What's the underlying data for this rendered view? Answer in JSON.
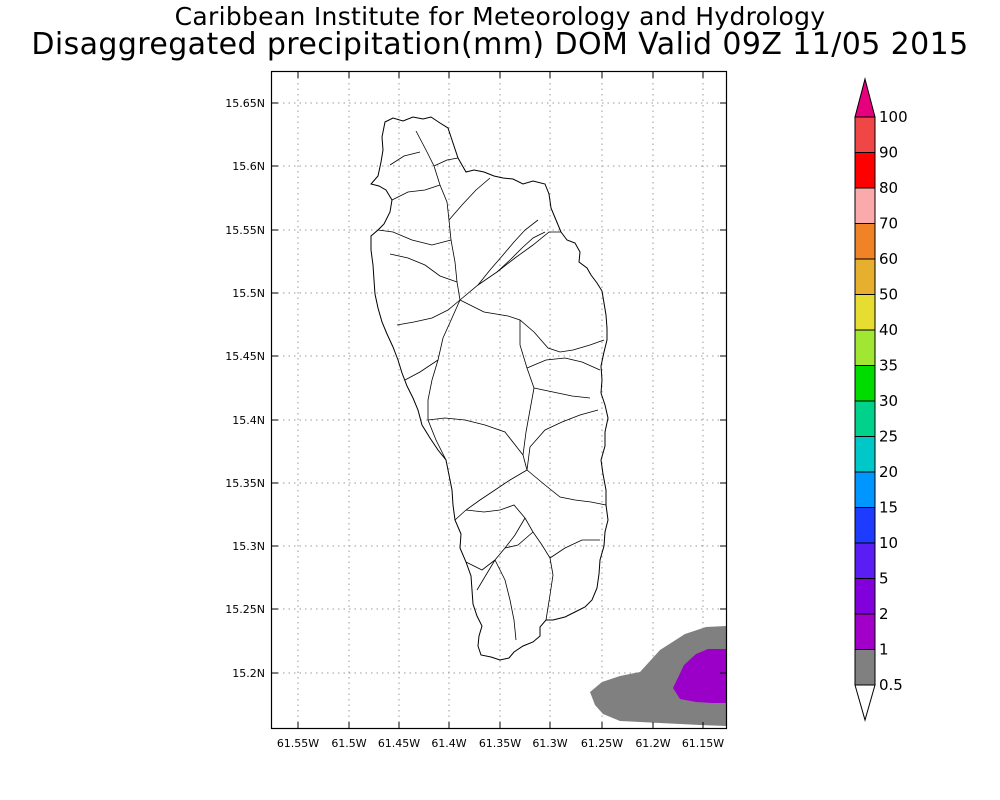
{
  "header": {
    "title_line1": "Caribbean Institute for Meteorology and Hydrology",
    "title_line2": "Disaggregated precipitation(mm) DOM Valid 09Z 11/05 2015"
  },
  "map": {
    "lat_ticks": [
      "15.2N",
      "15.25N",
      "15.3N",
      "15.35N",
      "15.4N",
      "15.45N",
      "15.5N",
      "15.55N",
      "15.6N",
      "15.65N"
    ],
    "lon_ticks": [
      "61.55W",
      "61.5W",
      "61.45W",
      "61.4W",
      "61.35W",
      "61.3W",
      "61.25W",
      "61.2W",
      "61.15W"
    ],
    "grid": true,
    "colors": {
      "outline": "#000000",
      "grid": "#9a9a9a",
      "precip_0_5_to_1": "#808080",
      "precip_1_to_2": "#9b00c8"
    }
  },
  "legend": {
    "labels": [
      "0.5",
      "1",
      "2",
      "5",
      "10",
      "15",
      "20",
      "25",
      "30",
      "35",
      "40",
      "50",
      "60",
      "70",
      "80",
      "90",
      "100"
    ],
    "colors": [
      "#808080",
      "#a000c8",
      "#8200dc",
      "#5a1ef5",
      "#1e3cff",
      "#0096ff",
      "#00c8c8",
      "#00d28c",
      "#00dc00",
      "#a0e632",
      "#e6dc32",
      "#e6af2d",
      "#f08228",
      "#faaaaa",
      "#ff0000",
      "#f04646",
      "#e6007d"
    ]
  }
}
